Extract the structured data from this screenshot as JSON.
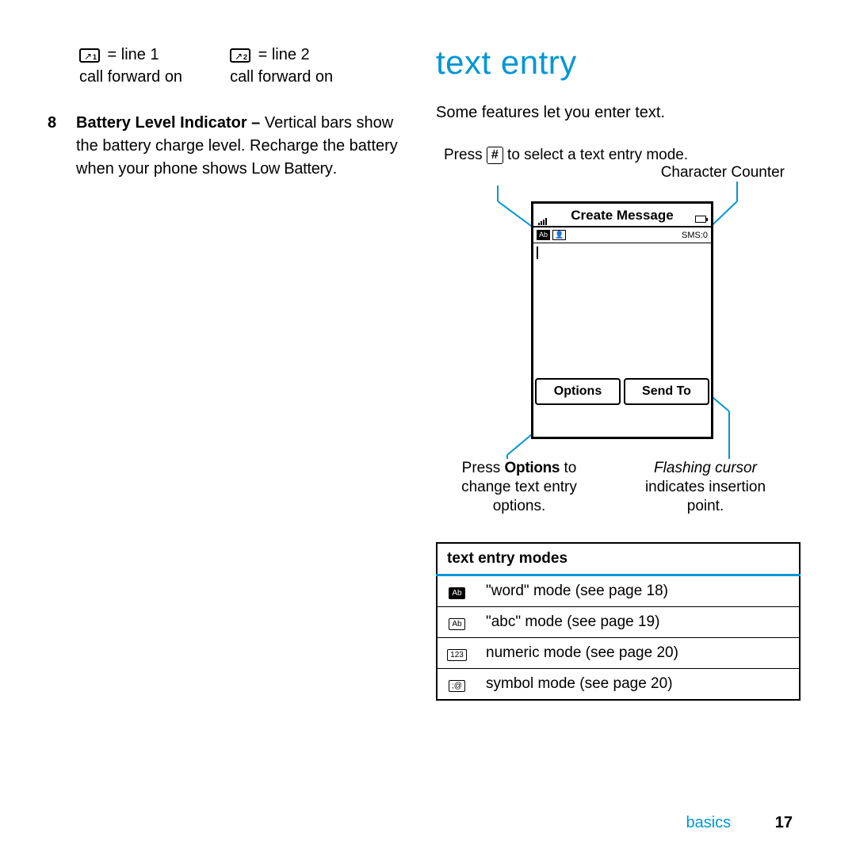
{
  "accent_color": "#0096d6",
  "left": {
    "indicators": [
      {
        "line": "line 1",
        "desc": "call forward on",
        "sub": "1"
      },
      {
        "line": "line 2",
        "desc": "call forward on",
        "sub": "2"
      }
    ],
    "battery": {
      "num": "8",
      "title": "Battery Level Indicator –",
      "body1": "Vertical bars show the battery charge level. Recharge the battery when your phone shows",
      "low": "Low Battery",
      "period": "."
    }
  },
  "right": {
    "heading": "text entry",
    "intro": "Some features let you enter text.",
    "diagram": {
      "top_left_pre": "Press ",
      "top_left_key": "#",
      "top_left_post": " to select a text entry mode.",
      "top_right": "Character Counter",
      "phone": {
        "title": "Create Message",
        "mode_ab": "Ab",
        "mode_person": "·",
        "sms": "SMS:0",
        "sk_left": "Options",
        "sk_right": "Send To"
      },
      "bottom_left_pre": "Press ",
      "bottom_left_bold": "Options",
      "bottom_left_post": " to change text entry options.",
      "bottom_right_ital": "Flashing cursor",
      "bottom_right_rest": "indicates insertion point."
    },
    "table": {
      "header": "text entry modes",
      "rows": [
        {
          "icon": "Ab",
          "icon_dark": true,
          "text": "\"word\" mode (see page 18)"
        },
        {
          "icon": "Ab",
          "icon_dark": false,
          "text": "\"abc\" mode (see page 19)"
        },
        {
          "icon": "123",
          "icon_dark": false,
          "text": "numeric mode (see page 20)"
        },
        {
          "icon": ";@",
          "icon_dark": false,
          "text": "symbol mode (see page 20)"
        }
      ]
    }
  },
  "footer": {
    "section": "basics",
    "page": "17"
  }
}
